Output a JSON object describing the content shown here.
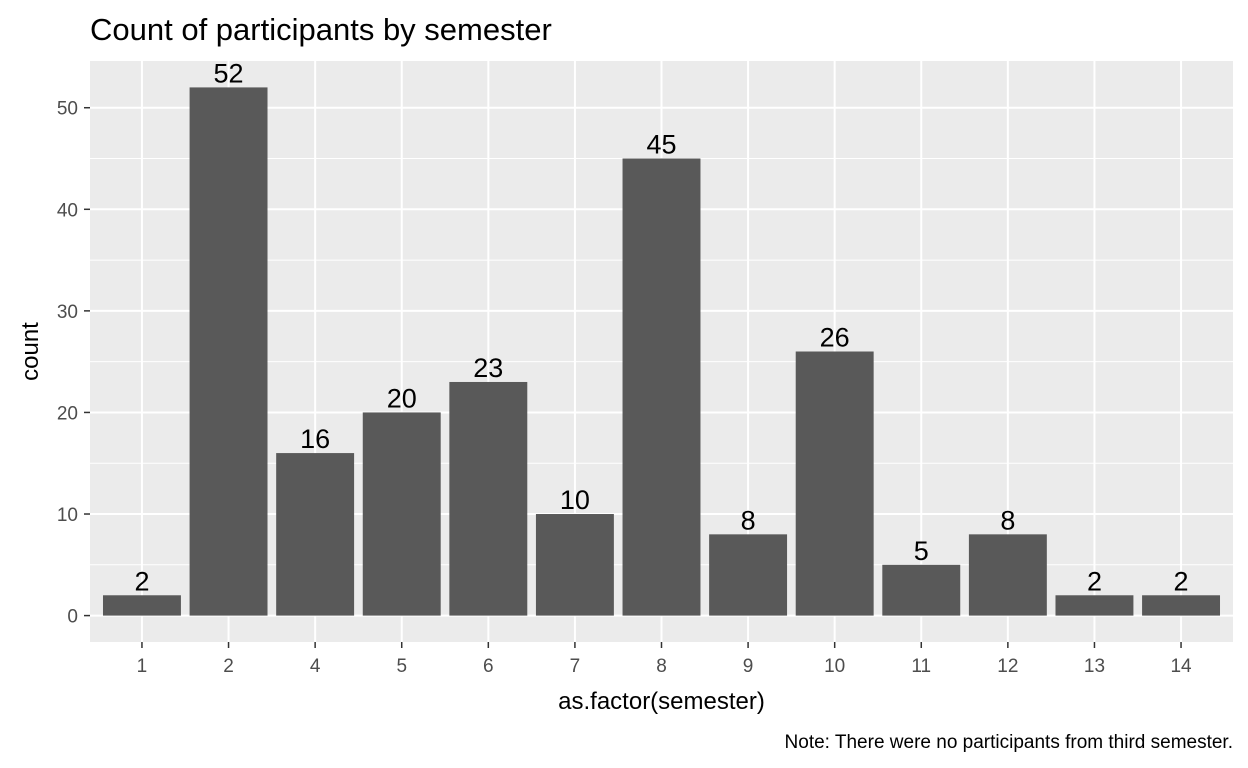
{
  "chart_data": {
    "type": "bar",
    "title": "Count of participants by semester",
    "xlabel": "as.factor(semester)",
    "ylabel": "count",
    "caption": "Note: There were no participants from third semester.",
    "categories": [
      "1",
      "2",
      "4",
      "5",
      "6",
      "7",
      "8",
      "9",
      "10",
      "11",
      "12",
      "13",
      "14"
    ],
    "values": [
      2,
      52,
      16,
      20,
      23,
      10,
      45,
      8,
      26,
      5,
      8,
      2,
      2
    ],
    "y_ticks": [
      0,
      10,
      20,
      30,
      40,
      50
    ],
    "ylim": [
      -2.6,
      54.6
    ],
    "grid": true,
    "legend": "none",
    "colors": {
      "panel": "#ebebeb",
      "grid": "#ffffff",
      "bar": "#595959"
    }
  }
}
